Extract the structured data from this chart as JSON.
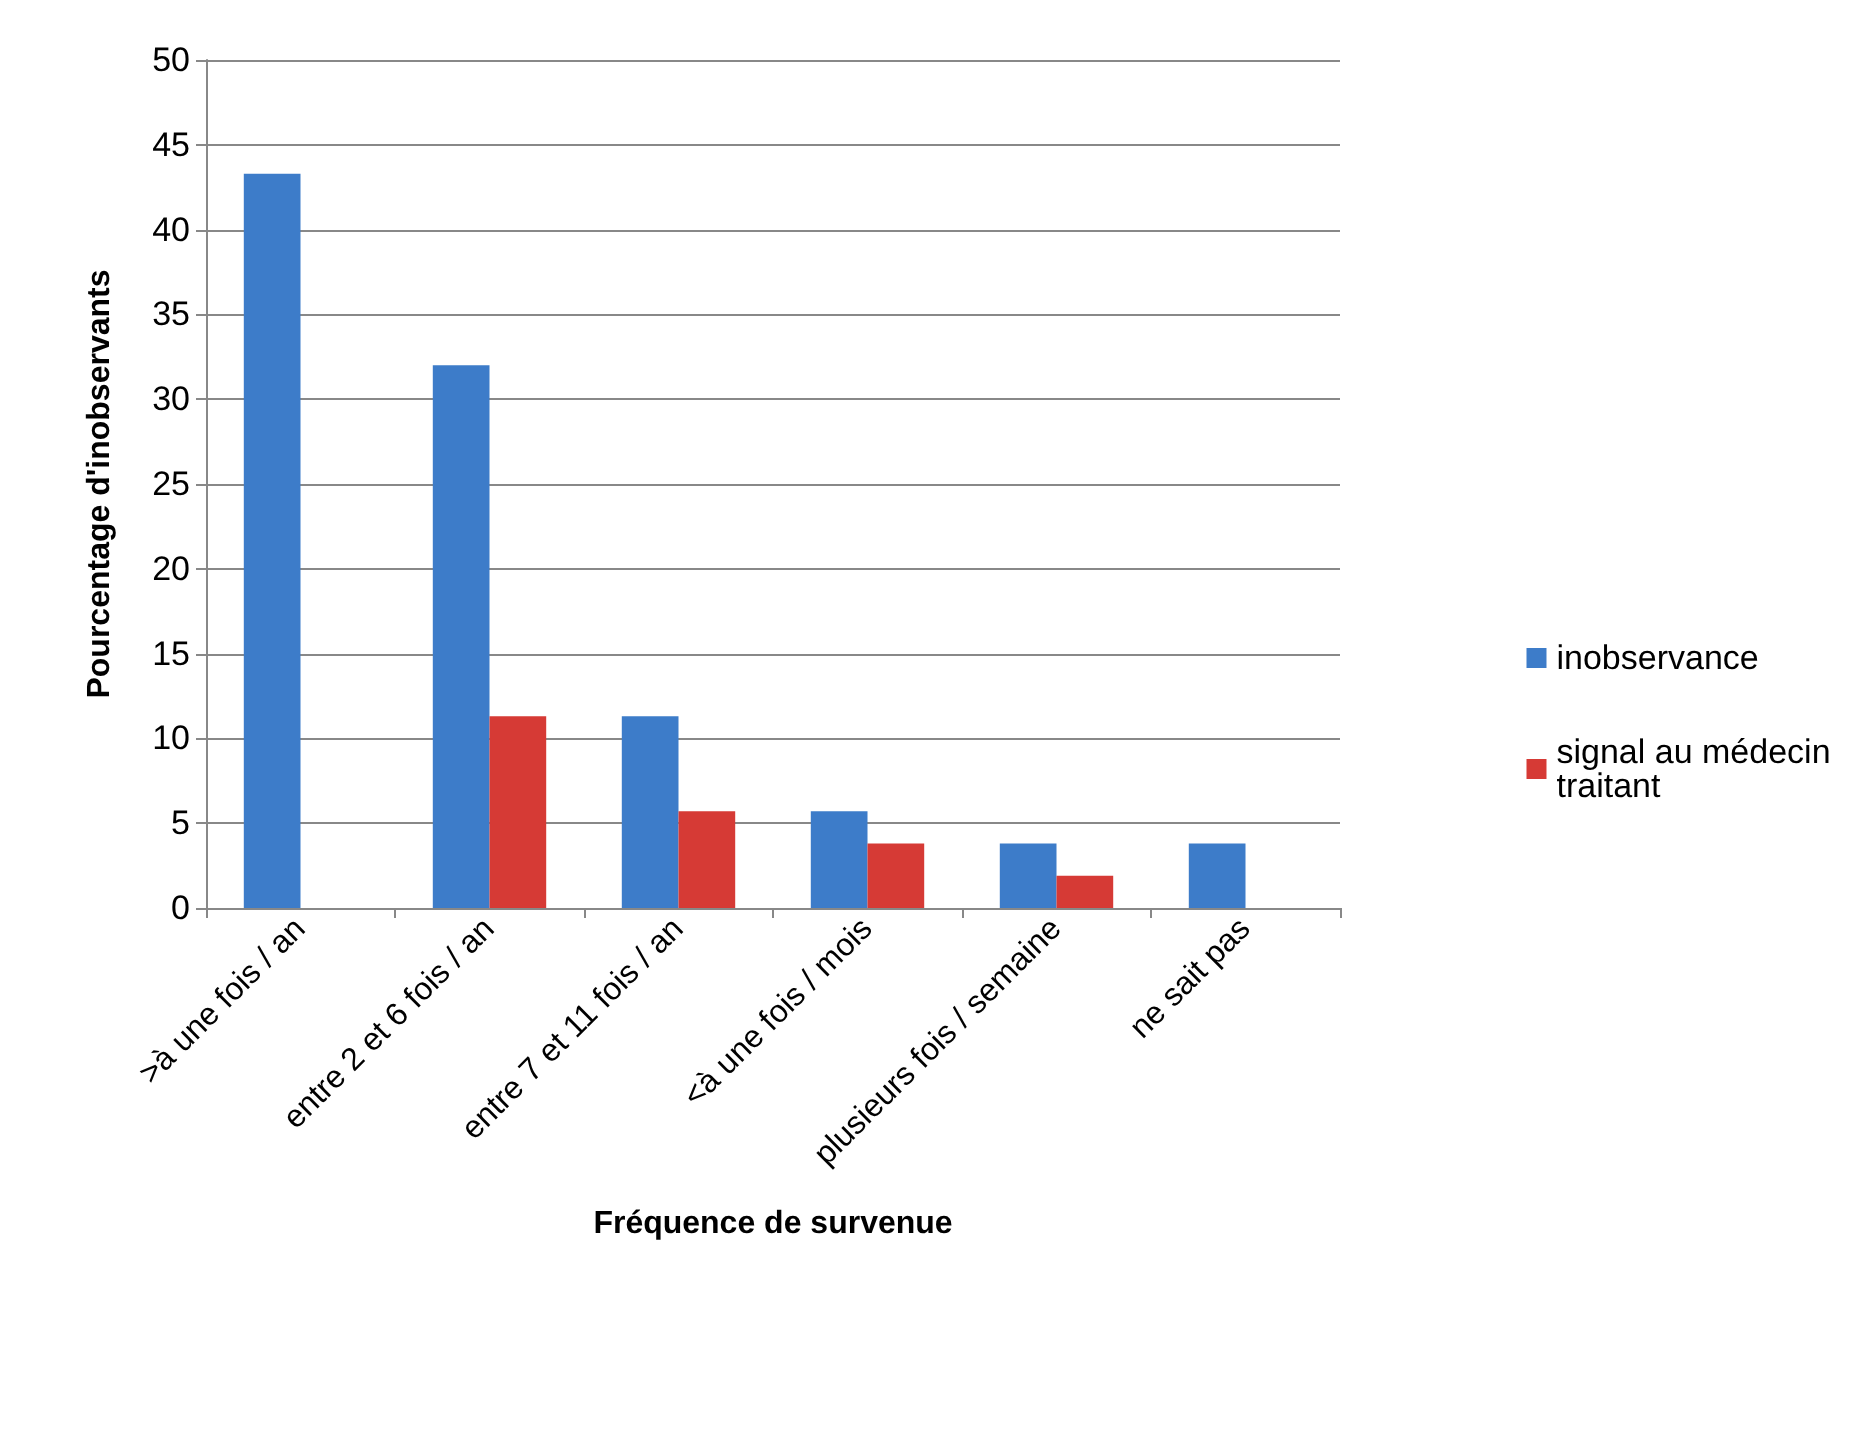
{
  "chart_data": {
    "type": "bar",
    "xlabel": "Fréquence de survenue",
    "ylabel": "Pourcentage d'inobservants",
    "categories": [
      ">à une fois / an",
      "entre 2 et 6 fois / an",
      "entre 7 et 11 fois / an",
      "<à une fois / mois",
      "plusieurs fois / semaine",
      "ne sait pas"
    ],
    "series": [
      {
        "name": "inobservance",
        "color": "#3d7cc9",
        "values": [
          43.3,
          32,
          11.3,
          5.7,
          3.8,
          3.8
        ]
      },
      {
        "name": "signal au médecin traitant",
        "color": "#d63a35",
        "values": [
          null,
          11.3,
          5.7,
          3.8,
          1.9,
          null
        ]
      }
    ],
    "ylim": [
      0,
      50
    ],
    "yticks": [
      0,
      5,
      10,
      15,
      20,
      25,
      30,
      35,
      40,
      45,
      50
    ],
    "grid": "y",
    "legend": "right"
  }
}
